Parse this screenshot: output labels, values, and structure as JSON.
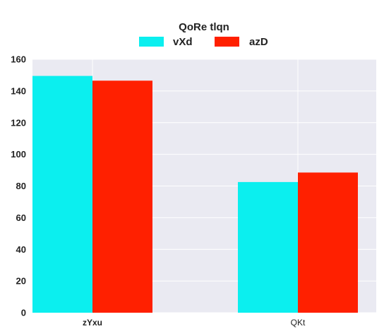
{
  "chart_data": {
    "type": "bar",
    "legend_title": "QoRe tlqn",
    "legend_position": "top-center",
    "categories": [
      "zYxu",
      "QKt"
    ],
    "series": [
      {
        "name": "vXd",
        "values": [
          149.5,
          82.5
        ],
        "color": "#0BEFEF"
      },
      {
        "name": "azD",
        "values": [
          146.5,
          88.5
        ],
        "color": "#FF2000"
      }
    ],
    "yticks": [
      "0",
      "20",
      "40",
      "60",
      "80",
      "100",
      "120",
      "140",
      "160"
    ],
    "ylim": [
      0,
      160
    ],
    "grid": true,
    "xlabel": "",
    "ylabel": ""
  },
  "colors": {
    "plot_background": "#EAEAF2",
    "grid": "#FFFFFF"
  }
}
